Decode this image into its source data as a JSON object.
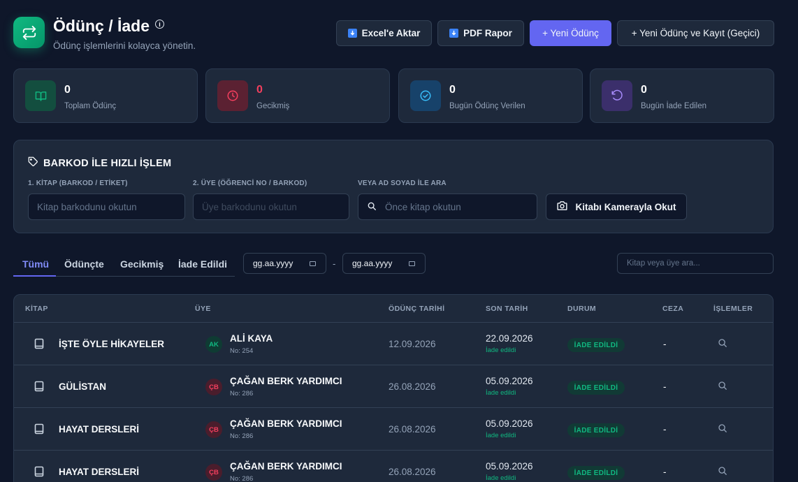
{
  "header": {
    "title": "Ödünç / İade",
    "info_symbol": "i",
    "subtitle": "Ödünç işlemlerini kolayca yönetin.",
    "buttons": {
      "excel": "Excel'e Aktar",
      "pdf": "PDF Rapor",
      "new_loan": "+ Yeni Ödünç",
      "new_loan_temp": "+ Yeni Ödünç ve Kayıt (Geçici)"
    }
  },
  "stats": [
    {
      "value": "0",
      "label": "Toplam Ödünç",
      "icon": "book-open-icon",
      "color": "#10b981"
    },
    {
      "value": "0",
      "label": "Gecikmiş",
      "icon": "clock-icon",
      "color": "#f43f5e"
    },
    {
      "value": "0",
      "label": "Bugün Ödünç Verilen",
      "icon": "check-circle-icon",
      "color": "#38bdf8"
    },
    {
      "value": "0",
      "label": "Bugün İade Edilen",
      "icon": "rotate-ccw-icon",
      "color": "#a78bfa"
    }
  ],
  "barcode": {
    "title": "BARKOD İLE HIZLI İŞLEM",
    "book_label": "1. KİTAP (BARKOD / ETİKET)",
    "book_placeholder": "Kitap barkodunu okutun",
    "member_label": "2. ÜYE (ÖĞRENCİ NO / BARKOD)",
    "member_placeholder": "Üye barkodunu okutun",
    "name_label": "VEYA AD SOYAD İLE ARA",
    "name_placeholder": "Önce kitap okutun",
    "camera_button": "Kitabı Kamerayla Okut"
  },
  "tabs": [
    "Tümü",
    "Ödünçte",
    "Gecikmiş",
    "İade Edildi"
  ],
  "active_tab": "Tümü",
  "date_from": "gg.aa.yyyy",
  "date_separator": "-",
  "date_to": "gg.aa.yyyy",
  "search_placeholder": "Kitap veya üye ara...",
  "table": {
    "columns": [
      "KİTAP",
      "ÜYE",
      "ÖDÜNÇ TARİHİ",
      "SON TARİH",
      "DURUM",
      "CEZA",
      "İŞLEMLER"
    ],
    "rows": [
      {
        "book": "İŞTE ÖYLE HİKAYELER",
        "initials": "AK",
        "avatar_color": "#10b981",
        "avatar_bg": "#0f3b33",
        "member": "ALİ KAYA",
        "member_no": "No: 254",
        "loan_date": "12.09.2026",
        "due_date": "22.09.2026",
        "return_note": "İade edildi",
        "status": "İADE EDİLDİ",
        "fine": "-"
      },
      {
        "book": "GÜLİSTAN",
        "initials": "ÇB",
        "avatar_color": "#f43f5e",
        "avatar_bg": "#4a1d2c",
        "member": "ÇAĞAN BERK YARDIMCI",
        "member_no": "No: 286",
        "loan_date": "26.08.2026",
        "due_date": "05.09.2026",
        "return_note": "İade edildi",
        "status": "İADE EDİLDİ",
        "fine": "-"
      },
      {
        "book": "HAYAT DERSLERİ",
        "initials": "ÇB",
        "avatar_color": "#f43f5e",
        "avatar_bg": "#4a1d2c",
        "member": "ÇAĞAN BERK YARDIMCI",
        "member_no": "No: 286",
        "loan_date": "26.08.2026",
        "due_date": "05.09.2026",
        "return_note": "İade edildi",
        "status": "İADE EDİLDİ",
        "fine": "-"
      },
      {
        "book": "HAYAT DERSLERİ",
        "initials": "ÇB",
        "avatar_color": "#f43f5e",
        "avatar_bg": "#4a1d2c",
        "member": "ÇAĞAN BERK YARDIMCI",
        "member_no": "No: 286",
        "loan_date": "26.08.2026",
        "due_date": "05.09.2026",
        "return_note": "İade edildi",
        "status": "İADE EDİLDİ",
        "fine": "-"
      }
    ]
  }
}
